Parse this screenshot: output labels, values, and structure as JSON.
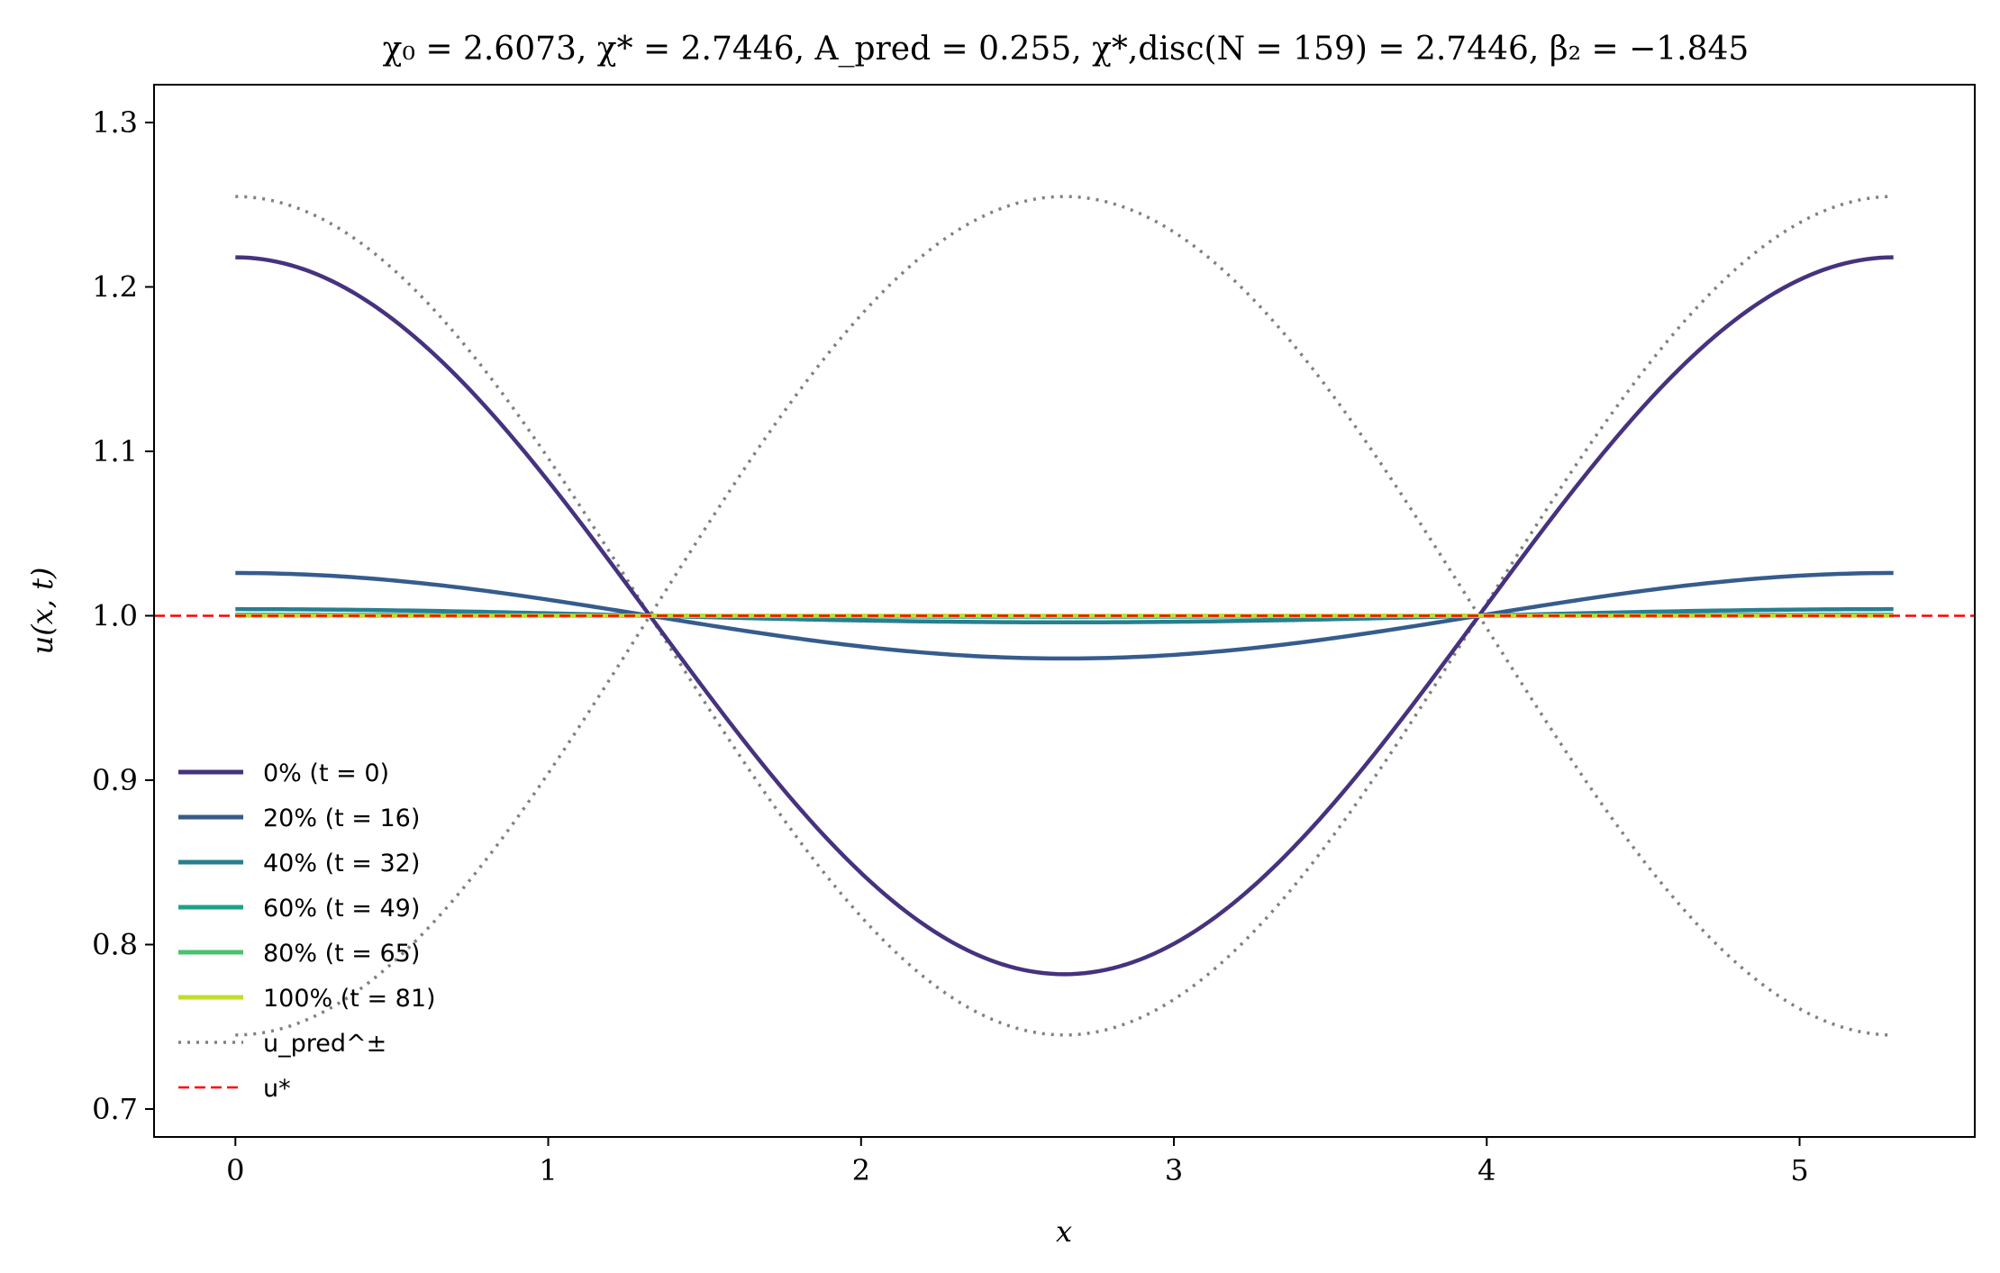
{
  "chart_data": {
    "type": "line",
    "title": "χ₀ = 2.6073,  χ* = 2.7446,  A_pred = 0.255,  χ*,disc(N = 159) = 2.7446,  β₂ = −1.845",
    "xlabel": "x",
    "ylabel": "u(x, t)",
    "xlim": [
      -0.26,
      5.56
    ],
    "ylim": [
      0.683,
      1.323
    ],
    "xticks": [
      0,
      1,
      2,
      3,
      4,
      5
    ],
    "xtick_labels": [
      "0",
      "1",
      "2",
      "3",
      "4",
      "5"
    ],
    "yticks": [
      0.7,
      0.8,
      0.9,
      1.0,
      1.1,
      1.2,
      1.3
    ],
    "ytick_labels": [
      "0.7",
      "0.8",
      "0.9",
      "1.0",
      "1.1",
      "1.2",
      "1.3"
    ],
    "grid": false,
    "legend_placement": "lower-left",
    "x_range": [
      0,
      5.3
    ],
    "series": [
      {
        "name": "0% (t = 0)",
        "style": "solid",
        "color": "#46327e",
        "profile": "cos",
        "amplitude": 0.218
      },
      {
        "name": "20% (t = 16)",
        "style": "solid",
        "color": "#365c8d",
        "profile": "cos",
        "amplitude": 0.026
      },
      {
        "name": "40% (t = 32)",
        "style": "solid",
        "color": "#277f8e",
        "profile": "cos",
        "amplitude": 0.004
      },
      {
        "name": "60% (t = 49)",
        "style": "solid",
        "color": "#1fa187",
        "profile": "cos",
        "amplitude": 0.0006
      },
      {
        "name": "80% (t = 65)",
        "style": "solid",
        "color": "#4ac16d",
        "profile": "cos",
        "amplitude": 0.0001
      },
      {
        "name": "100% (t = 81)",
        "style": "solid",
        "color": "#c0de29",
        "profile": "cos",
        "amplitude": 0.0
      },
      {
        "name": "u_pred^±",
        "style": "dotted",
        "color": "#808080",
        "profile": "cos_pair",
        "amplitude": 0.255
      },
      {
        "name": "u*",
        "style": "dashed",
        "color": "#ff0000",
        "profile": "constant",
        "value": 1.0
      }
    ]
  }
}
